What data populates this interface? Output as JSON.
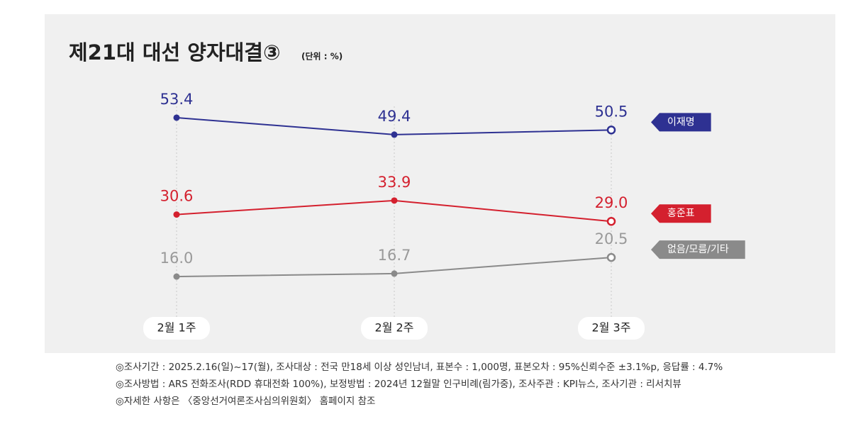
{
  "chart_data": {
    "type": "line",
    "title": "제21대 대선 양자대결③",
    "subtitle": "(단위 : %)",
    "categories": [
      "2월 1주",
      "2월 2주",
      "2월 3주"
    ],
    "series": [
      {
        "name": "이재명",
        "color": "#2e3192",
        "values": [
          53.4,
          49.4,
          50.5
        ],
        "value_labels": [
          "53.4",
          "49.4",
          "50.5"
        ]
      },
      {
        "name": "홍준표",
        "color": "#d4202e",
        "values": [
          30.6,
          33.9,
          29.0
        ],
        "value_labels": [
          "30.6",
          "33.9",
          "29.0"
        ]
      },
      {
        "name": "없음/모름/기타",
        "color": "#8a8a8a",
        "values": [
          16.0,
          16.7,
          20.5
        ],
        "value_labels": [
          "16.0",
          "16.7",
          "20.5"
        ]
      }
    ],
    "ylim": [
      0,
      60
    ],
    "notes": [
      "◎조사기간 : 2025.2.16(일)~17(월), 조사대상 : 전국 만18세 이상 성인남녀, 표본수 : 1,000명, 표본오차 : 95%신뢰수준 ±3.1%p, 응답률 : 4.7%",
      "◎조사방법 : ARS 전화조사(RDD 휴대전화 100%), 보정방법 : 2024년 12월말 인구비례(림가중), 조사주관 : KPI뉴스, 조사기관 : 리서치뷰",
      "◎자세한 사항은 〈중앙선거여론조사심의위원회〉 홈페이지 참조"
    ]
  }
}
